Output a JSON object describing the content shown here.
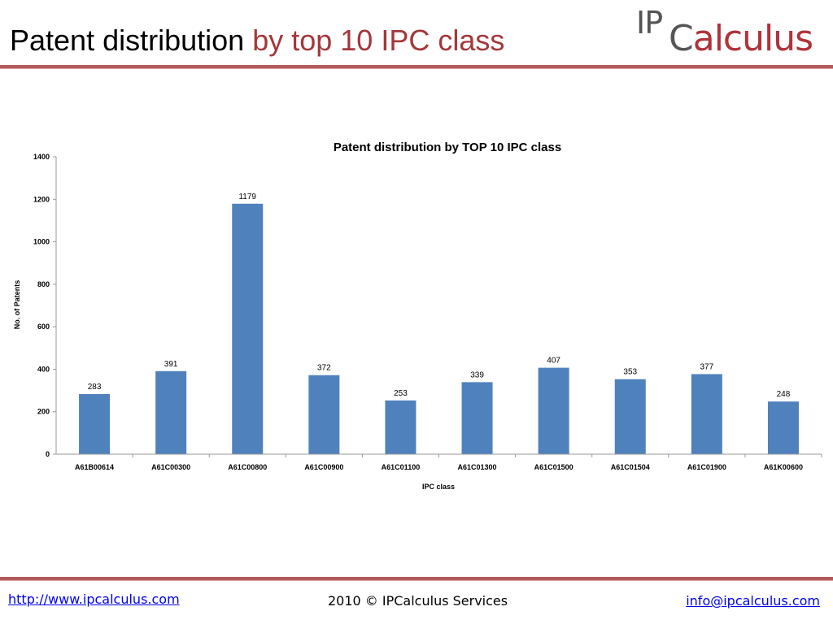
{
  "header": {
    "title_main": "Patent distribution",
    "title_accent": "by top 10 IPC class",
    "logo_ip": "IP",
    "logo_c": "C",
    "logo_rest": "alculus"
  },
  "footer": {
    "website": "http://www.ipcalculus.com",
    "copyright": "2010 © IPCalculus Services",
    "email": "info@ipcalculus.com"
  },
  "colors": {
    "bar": "#4f81bd",
    "accent": "#a4373a",
    "rule": "#b55a5a"
  },
  "chart_data": {
    "type": "bar",
    "title": "Patent distribution by TOP 10 IPC class",
    "xlabel": "IPC class",
    "ylabel": "No. of Patents",
    "categories": [
      "A61B00614",
      "A61C00300",
      "A61C00800",
      "A61C00900",
      "A61C01100",
      "A61C01300",
      "A61C01500",
      "A61C01504",
      "A61C01900",
      "A61K00600"
    ],
    "values": [
      283,
      391,
      1179,
      372,
      253,
      339,
      407,
      353,
      377,
      248
    ],
    "ylim": [
      0,
      1400
    ],
    "yticks": [
      0,
      200,
      400,
      600,
      800,
      1000,
      1200,
      1400
    ],
    "grid": false,
    "legend": "none",
    "data_labels": true
  }
}
